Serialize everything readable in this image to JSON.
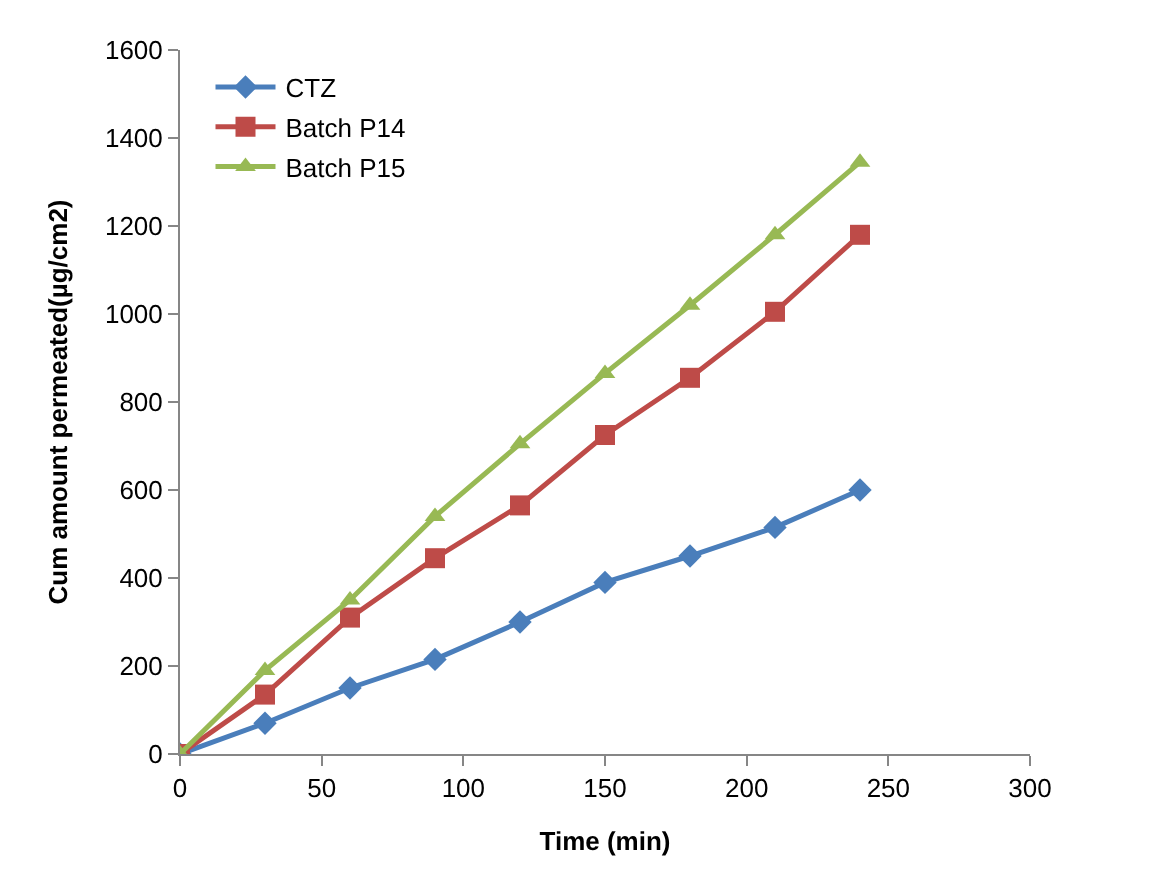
{
  "chart_data": {
    "type": "line",
    "xlabel": "Time (min)",
    "ylabel": "Cum amount permeated(µg/cm2)",
    "x": [
      0,
      30,
      60,
      90,
      120,
      150,
      180,
      210,
      240
    ],
    "series": [
      {
        "name": "CTZ",
        "color": "#4a7ebb",
        "marker": "diamond",
        "values": [
          0,
          70,
          150,
          215,
          300,
          390,
          450,
          515,
          600
        ]
      },
      {
        "name": "Batch P14",
        "color": "#be4b48",
        "marker": "square",
        "values": [
          0,
          135,
          310,
          445,
          565,
          725,
          855,
          1005,
          1180
        ]
      },
      {
        "name": "Batch P15",
        "color": "#98b954",
        "marker": "triangle",
        "values": [
          0,
          190,
          350,
          540,
          705,
          865,
          1020,
          1180,
          1345
        ]
      }
    ],
    "xlim": [
      0,
      300
    ],
    "xticks": [
      0,
      50,
      100,
      150,
      200,
      250,
      300
    ],
    "ylim": [
      0,
      1600
    ],
    "yticks": [
      0,
      200,
      400,
      600,
      800,
      1000,
      1200,
      1400,
      1600
    ],
    "legend": "top left",
    "line_style": "solid"
  }
}
